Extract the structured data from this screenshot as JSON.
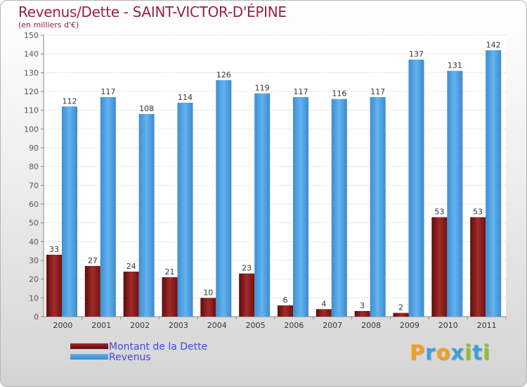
{
  "chart_data": {
    "type": "bar",
    "title": "Revenus/Dette - SAINT-VICTOR-D'ÉPINE",
    "subtitle": "(en milliers d'€)",
    "categories": [
      "2000",
      "2001",
      "2002",
      "2003",
      "2004",
      "2005",
      "2006",
      "2007",
      "2008",
      "2009",
      "2010",
      "2011"
    ],
    "series": [
      {
        "name": "Montant de la Dette",
        "color": "#8b1a1a",
        "values": [
          33,
          27,
          24,
          21,
          10,
          23,
          6,
          4,
          3,
          2,
          53,
          53
        ]
      },
      {
        "name": "Revenus",
        "color": "#4a9fe0",
        "values": [
          112,
          117,
          108,
          114,
          126,
          119,
          117,
          116,
          117,
          137,
          131,
          142
        ]
      }
    ],
    "ylim": [
      0,
      150
    ],
    "yticks": [
      0,
      10,
      20,
      30,
      40,
      50,
      60,
      70,
      80,
      90,
      100,
      110,
      120,
      130,
      140,
      150
    ],
    "grid": true,
    "xlabel": "",
    "ylabel": "",
    "legend_position": "bottom-left"
  },
  "branding": {
    "logo_letters": [
      "P",
      "r",
      "o",
      "x",
      "i",
      "t",
      "i"
    ],
    "logo_colors": [
      "#f0a020",
      "#3aa0e0",
      "#f0a020",
      "#3aa0e0",
      "#90c030",
      "#3aa0e0",
      "#90c030"
    ]
  }
}
